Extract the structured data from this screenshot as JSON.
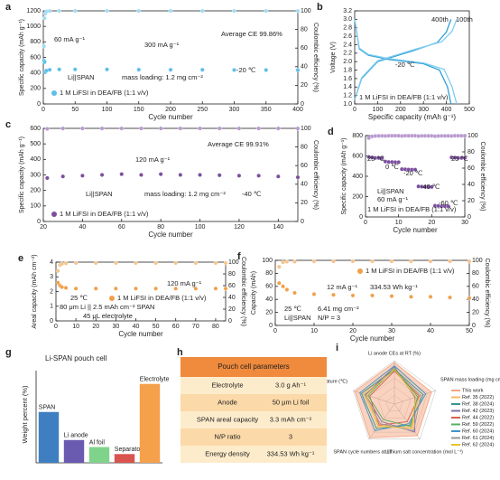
{
  "chart_data": [
    {
      "type": "scatter",
      "label": "a",
      "xlabel": "Cycle number",
      "ylabel": "Specific capacity (mAh g⁻¹)",
      "y2label": "Coulombic efficiency (%)",
      "xlim": [
        0,
        400
      ],
      "xticks": [
        0,
        50,
        100,
        150,
        200,
        250,
        300,
        350,
        400
      ],
      "ylim": [
        0,
        1200
      ],
      "yticks": [
        0,
        200,
        400,
        600,
        800,
        1000,
        1200
      ],
      "y2lim": [
        0,
        100
      ],
      "y2ticks": [
        0,
        20,
        40,
        60,
        80,
        100
      ],
      "annotations": [
        "60 mA g⁻¹",
        "300 mA g⁻¹",
        "Average CE 99.86%",
        "-20 ℃",
        "Li||SPAN",
        "mass loading: 1.2 mg cm⁻²"
      ],
      "series": [
        {
          "name": "1 M LiFSI in DEA/FB (1:1 v/v)",
          "color": "#5bbfe9",
          "x": [
            1,
            2,
            3,
            5,
            10,
            25,
            50,
            100,
            150,
            200,
            250,
            300,
            350,
            400
          ],
          "values": [
            560,
            540,
            410,
            430,
            440,
            445,
            445,
            445,
            442,
            440,
            440,
            438,
            437,
            436
          ]
        },
        {
          "color": "#9fdcf6",
          "axis": "y2",
          "x": [
            1,
            2,
            3,
            5,
            10,
            25,
            50,
            100,
            150,
            200,
            250,
            300,
            350,
            400
          ],
          "values": [
            62,
            92,
            97,
            99.5,
            99.8,
            99.9,
            99.9,
            99.9,
            99.9,
            99.9,
            99.9,
            99.9,
            99.9,
            99.9
          ]
        }
      ]
    },
    {
      "type": "line",
      "label": "b",
      "xlabel": "Specific capacity (mAh g⁻¹)",
      "ylabel": "Voltage (V)",
      "xlim": [
        0,
        500
      ],
      "xticks": [
        0,
        100,
        200,
        300,
        400,
        500
      ],
      "ylim": [
        1.0,
        3.2
      ],
      "yticks": [
        {
          "value": 1.0,
          "label": "1.0"
        },
        1.2,
        1.4,
        1.6,
        1.8,
        {
          "value": 2.0,
          "label": "2.0"
        },
        2.2,
        2.4,
        2.6,
        2.8,
        {
          "value": 3.0,
          "label": "3.0"
        },
        3.2
      ],
      "annotations": [
        "-20 ℃",
        "1 M LiFSI in DEA/FB (1:1 v/v)"
      ],
      "series": [
        {
          "name": "400th",
          "color": "#2e9fd6",
          "x": [
            0,
            20,
            60,
            150,
            300,
            370,
            405,
            420,
            null,
            0,
            30,
            100,
            250,
            360,
            400,
            420
          ],
          "values": [
            3.0,
            2.3,
            2.15,
            2.05,
            1.95,
            1.8,
            1.4,
            1.0,
            null,
            1.1,
            1.6,
            2.0,
            2.25,
            2.45,
            2.7,
            3.0
          ]
        },
        {
          "name": "100th",
          "color": "#7fcdef",
          "x": [
            0,
            20,
            60,
            150,
            300,
            390,
            425,
            445,
            null,
            0,
            30,
            100,
            250,
            380,
            425,
            445
          ],
          "values": [
            3.0,
            2.32,
            2.17,
            2.07,
            1.97,
            1.82,
            1.4,
            1.0,
            null,
            1.1,
            1.62,
            2.02,
            2.27,
            2.47,
            2.72,
            3.0
          ]
        }
      ]
    },
    {
      "type": "scatter",
      "label": "c",
      "xlabel": "Cycle number",
      "ylabel": "Specific capacity (mAh g⁻¹)",
      "y2label": "Coulombic efficiency (%)",
      "xlim": [
        20,
        150
      ],
      "xticks": [
        20,
        40,
        60,
        80,
        100,
        120,
        140
      ],
      "ylim": [
        0,
        600
      ],
      "yticks": [
        0,
        100,
        200,
        300,
        400,
        500,
        600
      ],
      "y2lim": [
        0,
        100
      ],
      "y2ticks": [
        0,
        20,
        40,
        60,
        80,
        100
      ],
      "annotations": [
        "120 mA g⁻¹",
        "Average CE 99.91%",
        "Li||SPAN",
        "mass loading: 1.2 mg cm⁻²",
        "-40 ℃"
      ],
      "series": [
        {
          "name": "1 M LiFSI in DEA/FB (1:1 v/v)",
          "color": "#7b4f9e",
          "x": [
            22,
            30,
            40,
            50,
            60,
            70,
            80,
            90,
            100,
            110,
            120,
            130,
            140,
            150
          ],
          "values": [
            280,
            290,
            295,
            300,
            305,
            300,
            305,
            300,
            300,
            298,
            295,
            295,
            290,
            285
          ]
        },
        {
          "color": "#b99ad0",
          "axis": "y2",
          "x": [
            22,
            30,
            40,
            50,
            60,
            70,
            80,
            90,
            100,
            110,
            120,
            130,
            140,
            150
          ],
          "values": [
            99.5,
            99.9,
            99.9,
            99.9,
            99.9,
            99.9,
            99.9,
            99.9,
            99.9,
            99.9,
            99.9,
            99.9,
            99.9,
            99.9
          ]
        }
      ]
    },
    {
      "type": "scatter",
      "label": "d",
      "xlabel": "Cycle number",
      "ylabel": "Specific capacity (mAh g⁻¹)",
      "y2label": "Coulombic efficiency (%)",
      "xlim": [
        0,
        30
      ],
      "xticks": [
        0,
        10,
        20,
        30
      ],
      "ylim": [
        0,
        800
      ],
      "yticks": [
        0,
        200,
        400,
        600,
        800
      ],
      "y2lim": [
        0,
        100
      ],
      "y2ticks": [
        0,
        20,
        40,
        60,
        80,
        100
      ],
      "annotations": [
        "25 ℃",
        "0 ℃",
        "-20 ℃",
        "-40 ℃",
        "-60 ℃",
        "25 ℃",
        "Li||SPAN",
        "60 mA g⁻¹",
        "1 M LiFSI in DEA/FB (1:1 v/v)"
      ],
      "series": [
        {
          "color": "#7b4f9e",
          "x": [
            1,
            2,
            3,
            4,
            5,
            6,
            7,
            8,
            9,
            10,
            11,
            12,
            13,
            14,
            15,
            16,
            17,
            18,
            19,
            20,
            21,
            22,
            23,
            24,
            25,
            26,
            27,
            28,
            29,
            30
          ],
          "values": [
            590,
            585,
            580,
            580,
            578,
            545,
            540,
            540,
            538,
            538,
            470,
            468,
            466,
            465,
            465,
            300,
            298,
            296,
            295,
            295,
            110,
            108,
            106,
            105,
            105,
            585,
            583,
            580,
            580,
            580
          ]
        },
        {
          "color": "#b99ad0",
          "axis": "y2",
          "x": [
            1,
            2,
            3,
            4,
            5,
            6,
            7,
            8,
            9,
            10,
            11,
            12,
            13,
            14,
            15,
            16,
            17,
            18,
            19,
            20,
            21,
            22,
            23,
            24,
            25,
            26,
            27,
            28,
            29,
            30
          ],
          "values": [
            97,
            99,
            99.5,
            99.6,
            99.7,
            99.5,
            99.8,
            99.8,
            99.8,
            99.8,
            99.5,
            99.8,
            99.8,
            99.8,
            99.8,
            99.4,
            99.7,
            99.7,
            99.7,
            99.7,
            99.2,
            99.5,
            99.6,
            99.6,
            99.6,
            99.5,
            99.8,
            99.8,
            99.8,
            99.8
          ]
        }
      ]
    },
    {
      "type": "scatter",
      "label": "e",
      "xlabel": "Cycle number",
      "ylabel": "Areal capacity (mAh cm⁻²)",
      "y2label": "Coulombic efficiency (%)",
      "xlim": [
        0,
        85
      ],
      "xticks": [
        0,
        10,
        20,
        30,
        40,
        50,
        60,
        70,
        80
      ],
      "ylim": [
        0,
        4
      ],
      "yticks": [
        0,
        1,
        2,
        3,
        4
      ],
      "y2lim": [
        0,
        100
      ],
      "y2ticks": [
        0,
        20,
        40,
        60,
        80,
        100
      ],
      "annotations": [
        "120 mA g⁻¹",
        "25 ℃",
        "80 μm Li || 2.5 mAh cm⁻² SPAN",
        "45 μL electrolyte"
      ],
      "series": [
        {
          "name": "1 M LiFSI in DEA/FB (1:1 v/v)",
          "color": "#f0a04b",
          "x": [
            1,
            2,
            3,
            5,
            10,
            20,
            30,
            40,
            50,
            60,
            70,
            80,
            85
          ],
          "values": [
            2.6,
            2.4,
            2.3,
            2.25,
            2.2,
            2.2,
            2.2,
            2.2,
            2.2,
            2.2,
            2.2,
            2.2,
            2.2
          ]
        },
        {
          "color": "#f6c48d",
          "axis": "y2",
          "x": [
            1,
            2,
            3,
            5,
            10,
            20,
            30,
            40,
            50,
            60,
            70,
            80,
            85
          ],
          "values": [
            85,
            95,
            97,
            98,
            98.5,
            98.5,
            98.5,
            98.5,
            98.5,
            98.5,
            98.5,
            98.5,
            98.5
          ]
        }
      ]
    },
    {
      "type": "scatter",
      "label": "f",
      "xlabel": "Cycle number",
      "ylabel": "Capacity (mAh)",
      "y2label": "Coulombic efficiency (%)",
      "xlim": [
        0,
        50
      ],
      "xticks": [
        0,
        10,
        20,
        30,
        40,
        50
      ],
      "ylim": [
        0,
        100
      ],
      "yticks": [
        0,
        20,
        40,
        60,
        80,
        100
      ],
      "y2lim": [
        0,
        100
      ],
      "y2ticks": [
        0,
        20,
        40,
        60,
        80,
        100
      ],
      "annotations": [
        "12 mA g⁻¹",
        "334.53 Wh kg⁻¹",
        "25 ℃",
        "6.41 mg cm⁻²",
        "Li||SPAN",
        "N/P = 3"
      ],
      "series": [
        {
          "name": "1 M LiFSI in DEA/FB (1:1 v/v)",
          "color": "#f0a04b",
          "x": [
            1,
            2,
            3,
            5,
            10,
            15,
            20,
            25,
            30,
            35,
            40,
            45,
            50
          ],
          "values": [
            65,
            60,
            55,
            50,
            48,
            47,
            46,
            46,
            45,
            44,
            44,
            43,
            42
          ]
        },
        {
          "color": "#f6c48d",
          "axis": "y2",
          "x": [
            1,
            2,
            3,
            5,
            10,
            15,
            20,
            25,
            30,
            35,
            40,
            45,
            50
          ],
          "values": [
            90,
            97,
            98,
            98,
            98.5,
            98.5,
            98.5,
            98.5,
            98.5,
            98.5,
            98.5,
            98.5,
            98.5
          ]
        }
      ]
    },
    {
      "type": "bar",
      "label": "g",
      "title": "Li-SPAN pouch cell",
      "ylabel": "Weight percent (%)",
      "categories": [
        "SPAN",
        "Li anode",
        "Al foil",
        "Separator",
        "Electrolyte"
      ],
      "values": [
        29,
        13,
        9,
        5,
        45
      ],
      "colors": [
        "#3f7fc1",
        "#6a5bb0",
        "#7fd38a",
        "#d9534f",
        "#f5a04a"
      ],
      "ylim": [
        0,
        50
      ]
    },
    {
      "type": "radar",
      "label": "i",
      "axes": [
        "Li anode CEs at RT (%)",
        "SPAN mass loading (mg cm⁻²)",
        "Lithium salt concentration (mol L⁻¹)",
        "SPAN cycle numbers at LT",
        "Minimum operating temperature (℃)"
      ],
      "rlim": [
        0,
        5
      ],
      "series": [
        {
          "name": "This work",
          "color": "#f4a582",
          "values": [
            4.8,
            4.5,
            4.5,
            4.8,
            4.8
          ]
        },
        {
          "name": "Ref. 35 (2022)",
          "color": "#fdb863",
          "values": [
            4.2,
            3.0,
            3.5,
            3.0,
            3.8
          ]
        },
        {
          "name": "Ref. 38 (2024)",
          "color": "#35978f",
          "values": [
            4.0,
            3.5,
            3.0,
            3.5,
            4.0
          ]
        },
        {
          "name": "Ref. 42 (2023)",
          "color": "#8073ac",
          "values": [
            4.3,
            2.5,
            4.0,
            2.5,
            3.5
          ]
        },
        {
          "name": "Ref. 44 (2022)",
          "color": "#d6604d",
          "values": [
            3.8,
            3.0,
            2.5,
            3.0,
            3.0
          ]
        },
        {
          "name": "Ref. 59 (2022)",
          "color": "#5aae61",
          "values": [
            4.1,
            2.8,
            3.2,
            2.2,
            3.2
          ]
        },
        {
          "name": "Ref. 60 (2024)",
          "color": "#4393c3",
          "values": [
            4.4,
            3.8,
            2.8,
            3.8,
            4.2
          ]
        },
        {
          "name": "Ref. 61 (2024)",
          "color": "#999999",
          "values": [
            3.9,
            3.2,
            3.8,
            2.8,
            3.6
          ]
        },
        {
          "name": "Ref. 62 (2024)",
          "color": "#e6c229",
          "values": [
            4.0,
            2.6,
            3.4,
            3.2,
            3.4
          ]
        }
      ]
    }
  ],
  "table": {
    "label": "h",
    "title": "Pouch cell parameters",
    "rows": [
      [
        "Electrolyte",
        "3.0 g Ah⁻¹"
      ],
      [
        "Anode",
        "50 μm Li foil"
      ],
      [
        "SPAN areal capacity",
        "3.3 mAh cm⁻²"
      ],
      [
        "N/P ratio",
        "3"
      ],
      [
        "Energy density",
        "334.53 Wh kg⁻¹"
      ]
    ]
  }
}
